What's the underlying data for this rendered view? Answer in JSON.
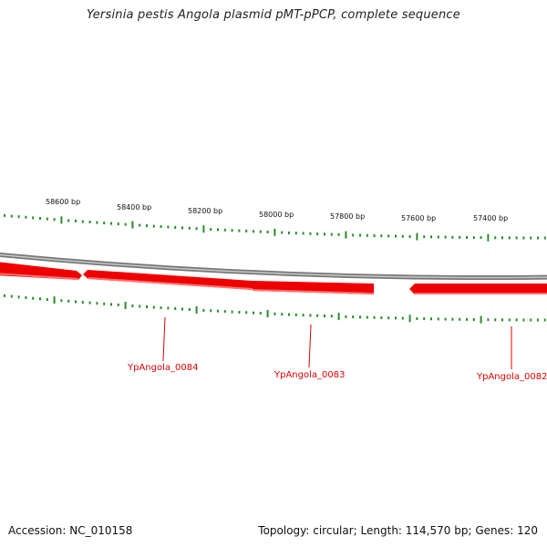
{
  "title": "Yersinia pestis Angola plasmid pMT-pPCP, complete sequence",
  "footer": {
    "accession": "Accession: NC_010158",
    "summary": "Topology: circular; Length: 114,570 bp; Genes: 120"
  },
  "scale": {
    "tick_labels": [
      "58600 bp",
      "58400 bp",
      "58200 bp",
      "58000 bp",
      "57800 bp",
      "57600 bp",
      "57400 bp"
    ]
  },
  "genes": [
    {
      "label": "YpAngola_0084"
    },
    {
      "label": "YpAngola_0083"
    },
    {
      "label": "YpAngola_0082"
    }
  ],
  "colors": {
    "gene_fill": "#ee0000",
    "gene_edge": "#ff6060",
    "backbone": "#8a8a8a",
    "tick": "#2a8a2a",
    "label": "#dd0000"
  }
}
